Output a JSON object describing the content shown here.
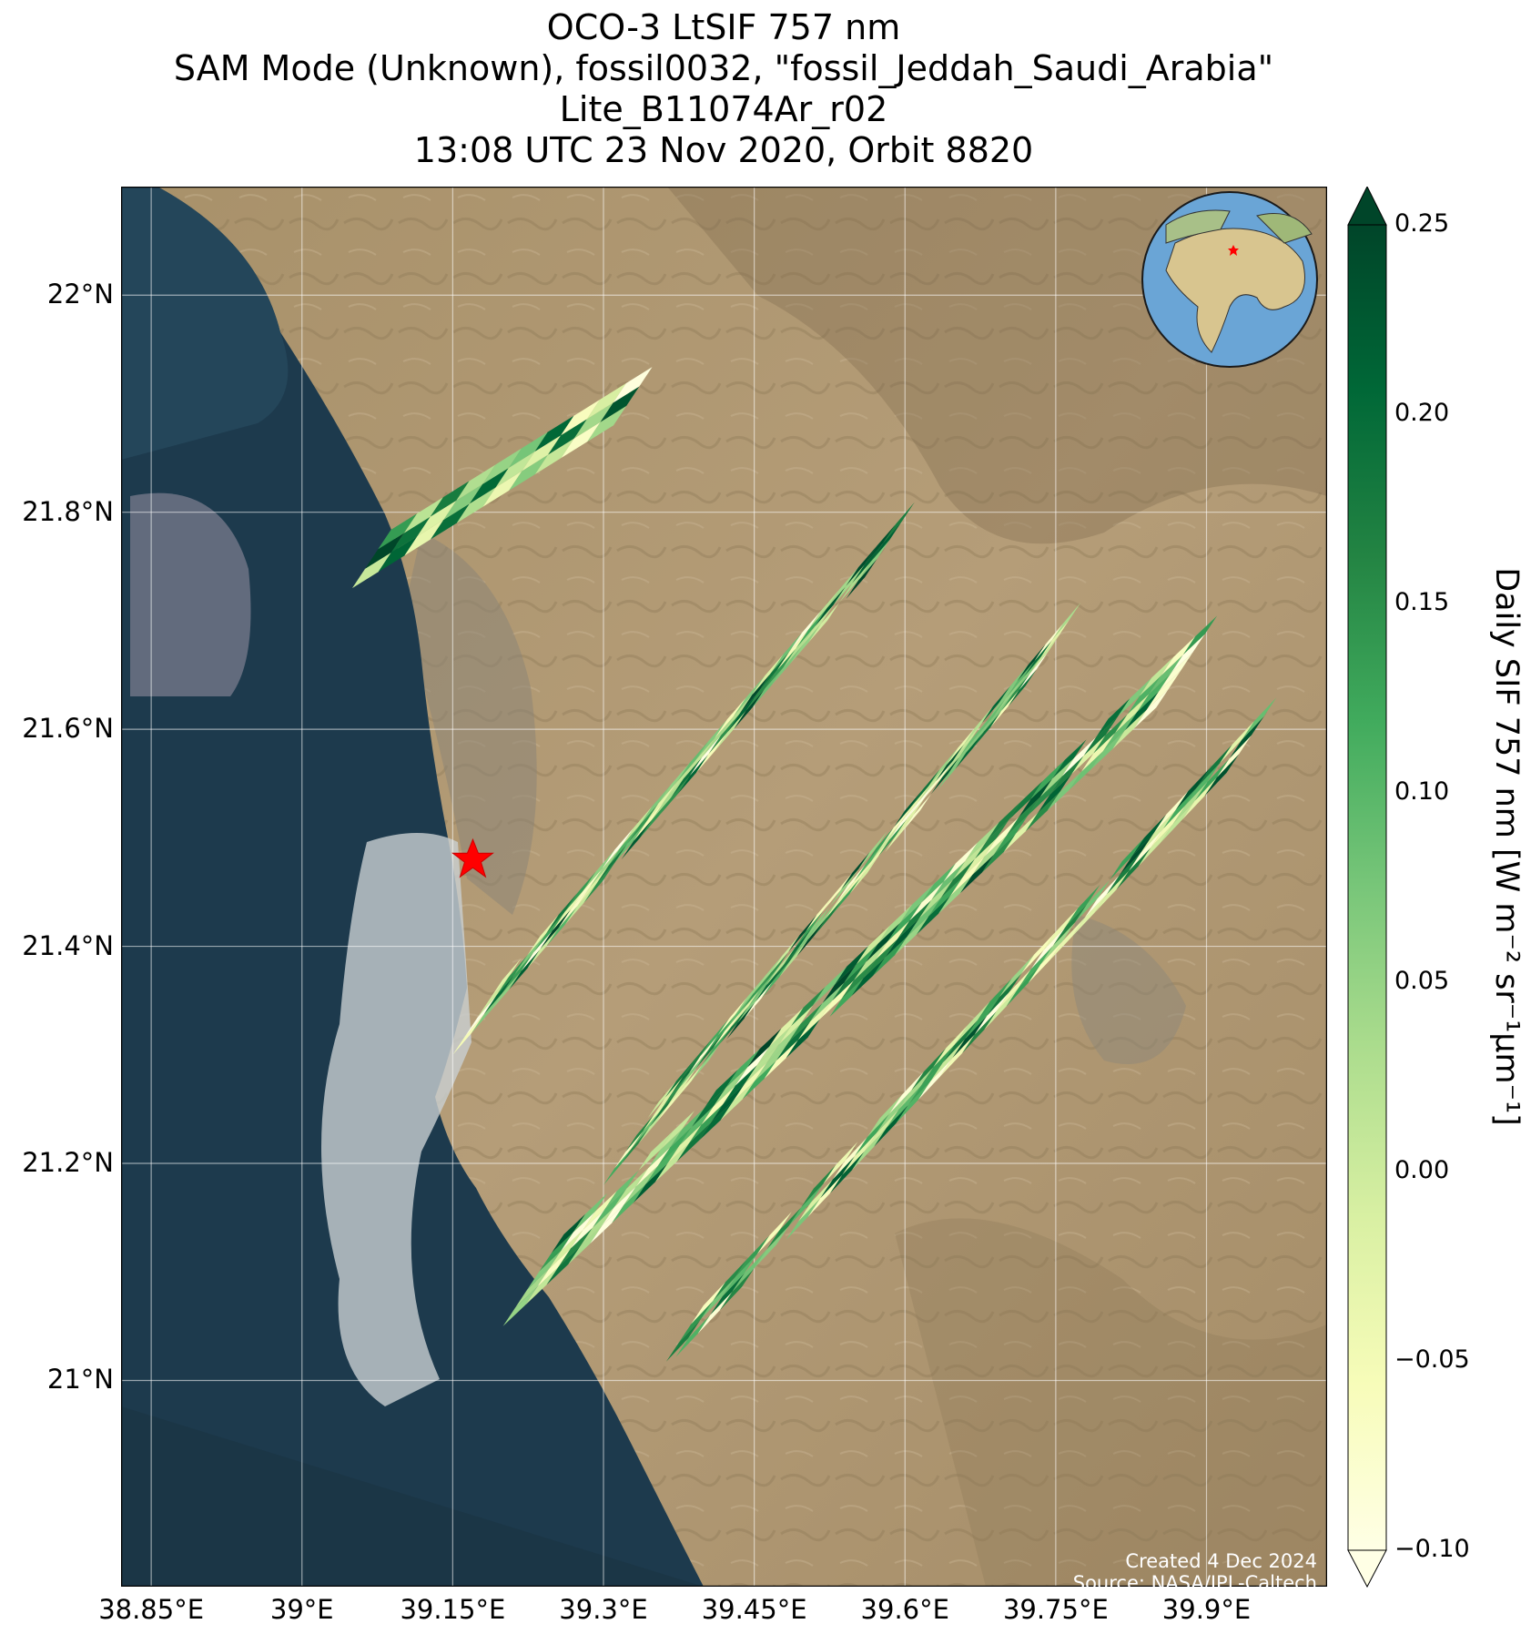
{
  "title_lines": [
    "OCO-3 LtSIF 757 nm",
    "SAM Mode (Unknown), fossil0032, \"fossil_Jeddah_Saudi_Arabia\"",
    "Lite_B11074Ar_r02",
    "13:08 UTC 23 Nov 2020, Orbit 8820"
  ],
  "map": {
    "lon_range": [
      38.82,
      40.02
    ],
    "lat_range": [
      20.81,
      22.1
    ],
    "lat_ticks": [
      "22°N",
      "21.8°N",
      "21.6°N",
      "21.4°N",
      "21.2°N",
      "21°N"
    ],
    "lat_values": [
      22.0,
      21.8,
      21.6,
      21.4,
      21.2,
      21.0
    ],
    "lon_ticks": [
      "38.85°E",
      "39°E",
      "39.15°E",
      "39.3°E",
      "39.45°E",
      "39.6°E",
      "39.75°E",
      "39.9°E"
    ],
    "lon_values": [
      38.85,
      39.0,
      39.15,
      39.3,
      39.45,
      39.6,
      39.75,
      39.9
    ],
    "target": {
      "lon": 39.17,
      "lat": 21.48,
      "marker": "red-star"
    },
    "basemap": "satellite imagery",
    "inset": "globe with red star marking target"
  },
  "credits": {
    "created": "Created 4 Dec 2024",
    "source": "Source: NASA/JPL-Caltech"
  },
  "colorbar": {
    "label": "Daily SIF 757 nm [W m⁻² sr⁻¹μm⁻¹]",
    "ticks": [
      "0.25",
      "0.20",
      "0.15",
      "0.10",
      "0.05",
      "0.00",
      "−0.05",
      "−0.10"
    ],
    "tick_values": [
      0.25,
      0.2,
      0.15,
      0.1,
      0.05,
      0.0,
      -0.05,
      -0.1
    ],
    "range": [
      -0.1,
      0.25
    ],
    "extend": "both",
    "colormap": "YlGn",
    "colors": [
      "#ffffe5",
      "#f7fcb9",
      "#d9f0a3",
      "#addd8e",
      "#78c679",
      "#41ab5d",
      "#238443",
      "#006837",
      "#004529"
    ]
  },
  "chart_data": {
    "type": "heatmap",
    "title": "OCO-3 LtSIF 757 nm",
    "variable": "Daily SIF 757 nm",
    "units": "W m⁻² sr⁻¹μm⁻¹",
    "value_range": [
      -0.1,
      0.25
    ],
    "swaths": [
      {
        "lon_start": 39.05,
        "lat_start": 21.73,
        "lon_end": 39.31,
        "lat_end": 21.88,
        "width_deg": 0.07,
        "rows": 10,
        "cols": 3
      },
      {
        "lon_start": 39.15,
        "lat_start": 21.3,
        "lon_end": 39.56,
        "lat_end": 21.74,
        "width_deg": 0.09,
        "rows": 22,
        "cols": 4
      },
      {
        "lon_start": 39.3,
        "lat_start": 21.18,
        "lon_end": 39.72,
        "lat_end": 21.64,
        "width_deg": 0.1,
        "rows": 24,
        "cols": 5
      },
      {
        "lon_start": 39.2,
        "lat_start": 21.05,
        "lon_end": 39.85,
        "lat_end": 21.62,
        "width_deg": 0.11,
        "rows": 30,
        "cols": 5
      },
      {
        "lon_start": 39.35,
        "lat_start": 21.0,
        "lon_end": 39.92,
        "lat_end": 21.56,
        "width_deg": 0.09,
        "rows": 26,
        "cols": 4
      }
    ]
  }
}
